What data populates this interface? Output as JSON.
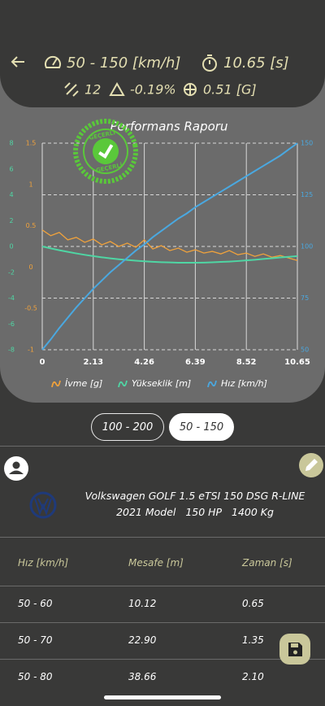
{
  "header": {
    "range": "50 - 150 [km/h]",
    "time": "10.65 [s]",
    "satellites": "12",
    "slope": "-0.19%",
    "g_force": "0.51 [G]"
  },
  "stamp": "GEÇERLİ",
  "chart_data": {
    "type": "line",
    "title": "Performans Raporu",
    "legend": "bottom",
    "grid": true,
    "x": [
      0,
      0.355,
      0.71,
      1.065,
      1.42,
      1.775,
      2.13,
      2.485,
      2.84,
      3.195,
      3.55,
      3.905,
      4.26,
      4.615,
      4.97,
      5.325,
      5.68,
      6.035,
      6.39,
      6.745,
      7.1,
      7.455,
      7.81,
      8.165,
      8.52,
      8.875,
      9.23,
      9.585,
      9.94,
      10.295,
      10.65
    ],
    "xlim": [
      0,
      10.65
    ],
    "xticks": [
      0,
      2.13,
      4.26,
      6.39,
      8.52,
      10.65
    ],
    "ylim": [
      -1,
      1.5
    ],
    "yticks": [
      -1,
      -0.5,
      0,
      0.5,
      1,
      1.5
    ],
    "y2lim": [
      50,
      150
    ],
    "y2ticks": [
      50,
      75,
      100,
      125,
      150
    ],
    "y3lim": [
      -8,
      8
    ],
    "y3ticks": [
      -8,
      -6,
      -4,
      -2,
      0,
      2,
      4,
      6,
      8
    ],
    "series": [
      {
        "name": "İvme [g]",
        "color": "#f0a23c",
        "axis": "y",
        "values": [
          0.45,
          0.38,
          0.42,
          0.33,
          0.36,
          0.3,
          0.34,
          0.27,
          0.31,
          0.25,
          0.29,
          0.24,
          0.33,
          0.22,
          0.26,
          0.2,
          0.23,
          0.18,
          0.21,
          0.17,
          0.19,
          0.16,
          0.2,
          0.15,
          0.17,
          0.13,
          0.16,
          0.12,
          0.14,
          0.11,
          0.08
        ]
      },
      {
        "name": "Yükseklik [m]",
        "color": "#4fd6a4",
        "axis": "y3",
        "values": [
          0,
          -0.15,
          -0.29,
          -0.42,
          -0.54,
          -0.65,
          -0.75,
          -0.84,
          -0.92,
          -0.99,
          -1.05,
          -1.1,
          -1.15,
          -1.19,
          -1.22,
          -1.24,
          -1.26,
          -1.26,
          -1.26,
          -1.25,
          -1.23,
          -1.2,
          -1.17,
          -1.13,
          -1.08,
          -1.03,
          -0.97,
          -0.91,
          -0.85,
          -0.8,
          -0.75
        ]
      },
      {
        "name": "Hız [km/h]",
        "color": "#4aa8e0",
        "axis": "y2",
        "values": [
          50,
          55,
          60.5,
          65.5,
          70.5,
          75,
          79.5,
          83.5,
          87.5,
          91,
          94.5,
          98,
          101,
          104.5,
          107.5,
          110.5,
          113.5,
          116,
          119,
          121.5,
          124,
          126.5,
          129,
          131.5,
          134,
          136.5,
          139,
          141.5,
          144,
          147,
          150
        ]
      }
    ]
  },
  "tabs": [
    "100 - 200",
    "50 - 150"
  ],
  "vehicle": {
    "name": "Volkswagen GOLF 1.5 eTSI 150 DSG R-LINE",
    "details": "2021 Model   150 HP   1400 Kg"
  },
  "table": {
    "columns": [
      "Hız [km/h]",
      "Mesafe [m]",
      "Zaman [s]"
    ],
    "rows": [
      [
        "50 - 60",
        "10.12",
        "0.65"
      ],
      [
        "50 - 70",
        "22.90",
        "1.35"
      ],
      [
        "50 - 80",
        "38.66",
        "2.10"
      ]
    ]
  }
}
